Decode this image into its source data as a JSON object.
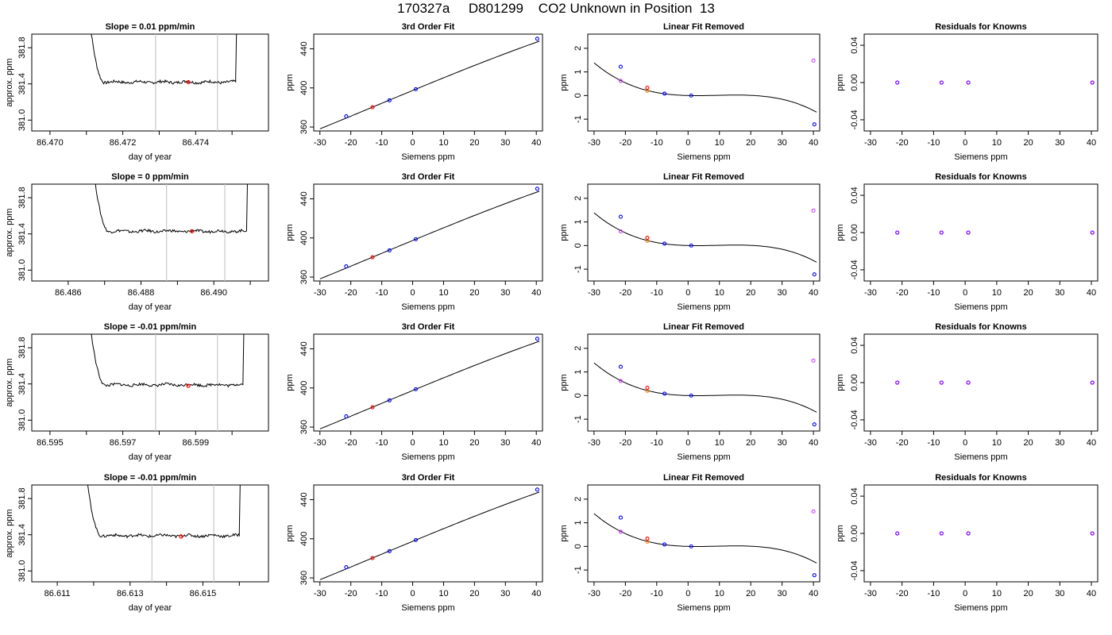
{
  "page": {
    "title": "170327a     D801299    CO2 Unknown in Position  13"
  },
  "colors": {
    "trace": "#000000",
    "window_lines": "#c8c8c8",
    "sample_point": "#ff0000",
    "known_points": "#0000ff",
    "residual_points": "#8000ff",
    "orange_points": "#ff8c00",
    "magenta_points": "#d040ff"
  },
  "chart_data": [
    {
      "type": "line",
      "panel": "trace",
      "row": 0,
      "title": "Slope =  0.01  ppm/min",
      "xlabel": "day of year",
      "ylabel": "approx. ppm",
      "xlim": [
        86.4695,
        86.476
      ],
      "ylim": [
        380.88,
        381.95
      ],
      "xticks": [
        "86.470",
        "86.472",
        "86.474"
      ],
      "xtick_values": [
        86.47,
        86.472,
        86.474
      ],
      "minor_xticks": [
        86.471,
        86.473,
        86.475
      ],
      "yticks": [
        "381.0",
        "381.4",
        "381.8"
      ],
      "ytick_values": [
        381.0,
        381.4,
        381.8
      ],
      "window": [
        86.4729,
        86.4746
      ],
      "sample_point": [
        86.4738,
        381.42
      ],
      "trace_start": 86.471,
      "trace_end": 86.4751,
      "baseline": 381.42
    },
    {
      "type": "line",
      "panel": "trace",
      "row": 1,
      "title": "Slope =  0  ppm/min",
      "xlabel": "day of year",
      "ylabel": "approx. ppm",
      "xlim": [
        86.485,
        86.4915
      ],
      "ylim": [
        380.88,
        381.95
      ],
      "xticks": [
        "86.486",
        "86.488",
        "86.490"
      ],
      "xtick_values": [
        86.486,
        86.488,
        86.49
      ],
      "minor_xticks": [
        86.487,
        86.489,
        86.491
      ],
      "yticks": [
        "381.0",
        "381.4",
        "381.8"
      ],
      "ytick_values": [
        381.0,
        381.4,
        381.8
      ],
      "window": [
        86.4887,
        86.4903
      ],
      "sample_point": [
        86.4894,
        381.43
      ],
      "trace_start": 86.4866,
      "trace_end": 86.4909,
      "baseline": 381.43
    },
    {
      "type": "line",
      "panel": "trace",
      "row": 2,
      "title": "Slope =  -0.01  ppm/min",
      "xlabel": "day of year",
      "ylabel": "approx. ppm",
      "xlim": [
        86.5945,
        86.601
      ],
      "ylim": [
        380.88,
        381.95
      ],
      "xticks": [
        "86.595",
        "86.597",
        "86.599"
      ],
      "xtick_values": [
        86.595,
        86.597,
        86.599
      ],
      "minor_xticks": [
        86.596,
        86.598,
        86.6
      ],
      "yticks": [
        "381.0",
        "381.4",
        "381.8"
      ],
      "ytick_values": [
        381.0,
        381.4,
        381.8
      ],
      "window": [
        86.5979,
        86.5996
      ],
      "sample_point": [
        86.5988,
        381.38
      ],
      "trace_start": 86.596,
      "trace_end": 86.6003,
      "baseline": 381.39
    },
    {
      "type": "line",
      "panel": "trace",
      "row": 3,
      "title": "Slope =  -0.01  ppm/min",
      "xlabel": "day of year",
      "ylabel": "approx. ppm",
      "xlim": [
        86.6103,
        86.6168
      ],
      "ylim": [
        380.88,
        381.95
      ],
      "xticks": [
        "86.611",
        "86.613",
        "86.615"
      ],
      "xtick_values": [
        86.611,
        86.613,
        86.615
      ],
      "minor_xticks": [
        86.612,
        86.614,
        86.616
      ],
      "yticks": [
        "381.0",
        "381.4",
        "381.8"
      ],
      "ytick_values": [
        381.0,
        381.4,
        381.8
      ],
      "window": [
        86.6136,
        86.6153
      ],
      "sample_point": [
        86.6144,
        381.38
      ],
      "trace_start": 86.6117,
      "trace_end": 86.616,
      "baseline": 381.39
    },
    {
      "type": "line",
      "panel": "fit",
      "row": 0,
      "title": "3rd Order Fit",
      "xlabel": "Siemens ppm",
      "ylabel": "ppm",
      "xlim": [
        -32,
        42
      ],
      "ylim": [
        356,
        455
      ],
      "xticks": [
        "-30",
        "-20",
        "-10",
        "0",
        "10",
        "20",
        "30",
        "40"
      ],
      "xtick_values": [
        -30,
        -20,
        -10,
        0,
        10,
        20,
        30,
        40
      ],
      "yticks": [
        "360",
        "400",
        "440"
      ],
      "ytick_values": [
        360,
        400,
        440
      ],
      "knowns": [
        {
          "x": -21.5,
          "y": 371.0
        },
        {
          "x": -7.5,
          "y": 387.3
        },
        {
          "x": 1.0,
          "y": 398.7
        },
        {
          "x": 40.3,
          "y": 450.3
        }
      ],
      "sample": {
        "x": -13.0,
        "y": 380.3
      },
      "curve_x": [
        -30,
        41
      ]
    },
    {
      "type": "line",
      "panel": "fit",
      "row": 1,
      "title": "3rd Order Fit",
      "xlabel": "Siemens ppm",
      "ylabel": "ppm",
      "xlim": [
        -32,
        42
      ],
      "ylim": [
        356,
        455
      ],
      "xticks": [
        "-30",
        "-20",
        "-10",
        "0",
        "10",
        "20",
        "30",
        "40"
      ],
      "xtick_values": [
        -30,
        -20,
        -10,
        0,
        10,
        20,
        30,
        40
      ],
      "yticks": [
        "360",
        "400",
        "440"
      ],
      "ytick_values": [
        360,
        400,
        440
      ],
      "knowns": [
        {
          "x": -21.5,
          "y": 371.0
        },
        {
          "x": -7.5,
          "y": 387.3
        },
        {
          "x": 1.0,
          "y": 398.7
        },
        {
          "x": 40.3,
          "y": 450.3
        }
      ],
      "sample": {
        "x": -13.0,
        "y": 380.3
      },
      "curve_x": [
        -30,
        41
      ]
    },
    {
      "type": "line",
      "panel": "fit",
      "row": 2,
      "title": "3rd Order Fit",
      "xlabel": "Siemens ppm",
      "ylabel": "ppm",
      "xlim": [
        -32,
        42
      ],
      "ylim": [
        356,
        455
      ],
      "xticks": [
        "-30",
        "-20",
        "-10",
        "0",
        "10",
        "20",
        "30",
        "40"
      ],
      "xtick_values": [
        -30,
        -20,
        -10,
        0,
        10,
        20,
        30,
        40
      ],
      "yticks": [
        "360",
        "400",
        "440"
      ],
      "ytick_values": [
        360,
        400,
        440
      ],
      "knowns": [
        {
          "x": -21.5,
          "y": 371.0
        },
        {
          "x": -7.5,
          "y": 387.3
        },
        {
          "x": 1.0,
          "y": 398.7
        },
        {
          "x": 40.3,
          "y": 450.3
        }
      ],
      "sample": {
        "x": -13.0,
        "y": 380.3
      },
      "curve_x": [
        -30,
        41
      ]
    },
    {
      "type": "line",
      "panel": "fit",
      "row": 3,
      "title": "3rd Order Fit",
      "xlabel": "Siemens ppm",
      "ylabel": "ppm",
      "xlim": [
        -32,
        42
      ],
      "ylim": [
        356,
        455
      ],
      "xticks": [
        "-30",
        "-20",
        "-10",
        "0",
        "10",
        "20",
        "30",
        "40"
      ],
      "xtick_values": [
        -30,
        -20,
        -10,
        0,
        10,
        20,
        30,
        40
      ],
      "yticks": [
        "360",
        "400",
        "440"
      ],
      "ytick_values": [
        360,
        400,
        440
      ],
      "knowns": [
        {
          "x": -21.5,
          "y": 371.0
        },
        {
          "x": -7.5,
          "y": 387.3
        },
        {
          "x": 1.0,
          "y": 398.7
        },
        {
          "x": 40.3,
          "y": 450.3
        }
      ],
      "sample": {
        "x": -13.0,
        "y": 380.3
      },
      "curve_x": [
        -30,
        41
      ]
    },
    {
      "type": "line",
      "panel": "linear_removed",
      "row": 0,
      "title": "Linear Fit Removed",
      "xlabel": "Siemens ppm",
      "ylabel": "ppm",
      "xlim": [
        -32,
        42
      ],
      "ylim": [
        -1.5,
        2.6
      ],
      "xticks": [
        "-30",
        "-20",
        "-10",
        "0",
        "10",
        "20",
        "30",
        "40"
      ],
      "xtick_values": [
        -30,
        -20,
        -10,
        0,
        10,
        20,
        30,
        40
      ],
      "yticks": [
        "-1",
        "0",
        "1",
        "2"
      ],
      "ytick_values": [
        -1,
        0,
        1,
        2
      ],
      "knowns": [
        {
          "x": -21.5,
          "y": 1.22
        },
        {
          "x": -7.5,
          "y": 0.08
        },
        {
          "x": 1.0,
          "y": 0.0
        },
        {
          "x": 40.3,
          "y": -1.22
        }
      ],
      "sample": {
        "x": -13.0,
        "y": 0.33
      },
      "orange": [
        {
          "x": -13.0,
          "y": 0.2
        }
      ],
      "magenta": [
        {
          "x": -21.5,
          "y": 0.62
        },
        {
          "x": 40.0,
          "y": 1.48
        }
      ],
      "curve_coeffs": [
        0.0,
        -0.00333,
        0.000683,
        -2.49e-05
      ],
      "curve_x": [
        -30,
        41
      ]
    },
    {
      "type": "line",
      "panel": "linear_removed",
      "row": 1,
      "title": "Linear Fit Removed",
      "xlabel": "Siemens ppm",
      "ylabel": "ppm",
      "xlim": [
        -32,
        42
      ],
      "ylim": [
        -1.5,
        2.6
      ],
      "xticks": [
        "-30",
        "-20",
        "-10",
        "0",
        "10",
        "20",
        "30",
        "40"
      ],
      "xtick_values": [
        -30,
        -20,
        -10,
        0,
        10,
        20,
        30,
        40
      ],
      "yticks": [
        "-1",
        "0",
        "1",
        "2"
      ],
      "ytick_values": [
        -1,
        0,
        1,
        2
      ],
      "knowns": [
        {
          "x": -21.5,
          "y": 1.22
        },
        {
          "x": -7.5,
          "y": 0.08
        },
        {
          "x": 1.0,
          "y": 0.0
        },
        {
          "x": 40.3,
          "y": -1.22
        }
      ],
      "sample": {
        "x": -13.0,
        "y": 0.33
      },
      "orange": [
        {
          "x": -13.0,
          "y": 0.2
        }
      ],
      "magenta": [
        {
          "x": -21.5,
          "y": 0.6
        },
        {
          "x": 40.0,
          "y": 1.48
        }
      ],
      "curve_coeffs": [
        0.0,
        -0.00333,
        0.000683,
        -2.49e-05
      ],
      "curve_x": [
        -30,
        41
      ]
    },
    {
      "type": "line",
      "panel": "linear_removed",
      "row": 2,
      "title": "Linear Fit Removed",
      "xlabel": "Siemens ppm",
      "ylabel": "ppm",
      "xlim": [
        -32,
        42
      ],
      "ylim": [
        -1.5,
        2.6
      ],
      "xticks": [
        "-30",
        "-20",
        "-10",
        "0",
        "10",
        "20",
        "30",
        "40"
      ],
      "xtick_values": [
        -30,
        -20,
        -10,
        0,
        10,
        20,
        30,
        40
      ],
      "yticks": [
        "-1",
        "0",
        "1",
        "2"
      ],
      "ytick_values": [
        -1,
        0,
        1,
        2
      ],
      "knowns": [
        {
          "x": -21.5,
          "y": 1.22
        },
        {
          "x": -7.5,
          "y": 0.08
        },
        {
          "x": 1.0,
          "y": 0.0
        },
        {
          "x": 40.3,
          "y": -1.22
        }
      ],
      "sample": {
        "x": -13.0,
        "y": 0.33
      },
      "orange": [
        {
          "x": -13.0,
          "y": 0.2
        }
      ],
      "magenta": [
        {
          "x": -21.5,
          "y": 0.62
        },
        {
          "x": 40.0,
          "y": 1.48
        }
      ],
      "curve_coeffs": [
        0.0,
        -0.00333,
        0.000683,
        -2.49e-05
      ],
      "curve_x": [
        -30,
        41
      ]
    },
    {
      "type": "line",
      "panel": "linear_removed",
      "row": 3,
      "title": "Linear Fit Removed",
      "xlabel": "Siemens ppm",
      "ylabel": "ppm",
      "xlim": [
        -32,
        42
      ],
      "ylim": [
        -1.5,
        2.6
      ],
      "xticks": [
        "-30",
        "-20",
        "-10",
        "0",
        "10",
        "20",
        "30",
        "40"
      ],
      "xtick_values": [
        -30,
        -20,
        -10,
        0,
        10,
        20,
        30,
        40
      ],
      "yticks": [
        "-1",
        "0",
        "1",
        "2"
      ],
      "ytick_values": [
        -1,
        0,
        1,
        2
      ],
      "knowns": [
        {
          "x": -21.5,
          "y": 1.22
        },
        {
          "x": -7.5,
          "y": 0.08
        },
        {
          "x": 1.0,
          "y": 0.0
        },
        {
          "x": 40.3,
          "y": -1.22
        }
      ],
      "sample": {
        "x": -13.0,
        "y": 0.33
      },
      "orange": [
        {
          "x": -13.0,
          "y": 0.2
        }
      ],
      "magenta": [
        {
          "x": -21.5,
          "y": 0.62
        },
        {
          "x": 40.0,
          "y": 1.48
        }
      ],
      "curve_coeffs": [
        0.0,
        -0.00333,
        0.000683,
        -2.49e-05
      ],
      "curve_x": [
        -30,
        41
      ]
    },
    {
      "type": "scatter",
      "panel": "residuals",
      "row": 0,
      "title": "Residuals for Knowns",
      "xlabel": "Siemens ppm",
      "ylabel": "ppm",
      "xlim": [
        -32,
        42
      ],
      "ylim": [
        -0.052,
        0.052
      ],
      "xticks": [
        "-30",
        "-20",
        "-10",
        "0",
        "10",
        "20",
        "30",
        "40"
      ],
      "xtick_values": [
        -30,
        -20,
        -10,
        0,
        10,
        20,
        30,
        40
      ],
      "yticks": [
        "-0.04",
        "0.00",
        "0.04"
      ],
      "ytick_values": [
        -0.04,
        0.0,
        0.04
      ],
      "points": [
        {
          "x": -21.5,
          "y": 0.0
        },
        {
          "x": -7.5,
          "y": 0.0
        },
        {
          "x": 1.0,
          "y": 0.0
        },
        {
          "x": 40.3,
          "y": 0.0
        }
      ]
    },
    {
      "type": "scatter",
      "panel": "residuals",
      "row": 1,
      "title": "Residuals for Knowns",
      "xlabel": "Siemens ppm",
      "ylabel": "ppm",
      "xlim": [
        -32,
        42
      ],
      "ylim": [
        -0.052,
        0.052
      ],
      "xticks": [
        "-30",
        "-20",
        "-10",
        "0",
        "10",
        "20",
        "30",
        "40"
      ],
      "xtick_values": [
        -30,
        -20,
        -10,
        0,
        10,
        20,
        30,
        40
      ],
      "yticks": [
        "-0.04",
        "0.00",
        "0.04"
      ],
      "ytick_values": [
        -0.04,
        0.0,
        0.04
      ],
      "points": [
        {
          "x": -21.5,
          "y": 0.0
        },
        {
          "x": -7.5,
          "y": 0.0
        },
        {
          "x": 1.0,
          "y": 0.0
        },
        {
          "x": 40.3,
          "y": 0.0
        }
      ]
    },
    {
      "type": "scatter",
      "panel": "residuals",
      "row": 2,
      "title": "Residuals for Knowns",
      "xlabel": "Siemens ppm",
      "ylabel": "ppm",
      "xlim": [
        -32,
        42
      ],
      "ylim": [
        -0.052,
        0.052
      ],
      "xticks": [
        "-30",
        "-20",
        "-10",
        "0",
        "10",
        "20",
        "30",
        "40"
      ],
      "xtick_values": [
        -30,
        -20,
        -10,
        0,
        10,
        20,
        30,
        40
      ],
      "yticks": [
        "-0.04",
        "0.00",
        "0.04"
      ],
      "ytick_values": [
        -0.04,
        0.0,
        0.04
      ],
      "points": [
        {
          "x": -21.5,
          "y": 0.0
        },
        {
          "x": -7.5,
          "y": 0.0
        },
        {
          "x": 1.0,
          "y": 0.0
        },
        {
          "x": 40.3,
          "y": 0.0
        }
      ]
    },
    {
      "type": "scatter",
      "panel": "residuals",
      "row": 3,
      "title": "Residuals for Knowns",
      "xlabel": "Siemens ppm",
      "ylabel": "ppm",
      "xlim": [
        -32,
        42
      ],
      "ylim": [
        -0.052,
        0.052
      ],
      "xticks": [
        "-30",
        "-20",
        "-10",
        "0",
        "10",
        "20",
        "30",
        "40"
      ],
      "xtick_values": [
        -30,
        -20,
        -10,
        0,
        10,
        20,
        30,
        40
      ],
      "yticks": [
        "-0.04",
        "0.00",
        "0.04"
      ],
      "ytick_values": [
        -0.04,
        0.0,
        0.04
      ],
      "points": [
        {
          "x": -21.5,
          "y": 0.0
        },
        {
          "x": -7.5,
          "y": 0.0
        },
        {
          "x": 1.0,
          "y": 0.0
        },
        {
          "x": 40.3,
          "y": 0.0
        }
      ]
    }
  ]
}
